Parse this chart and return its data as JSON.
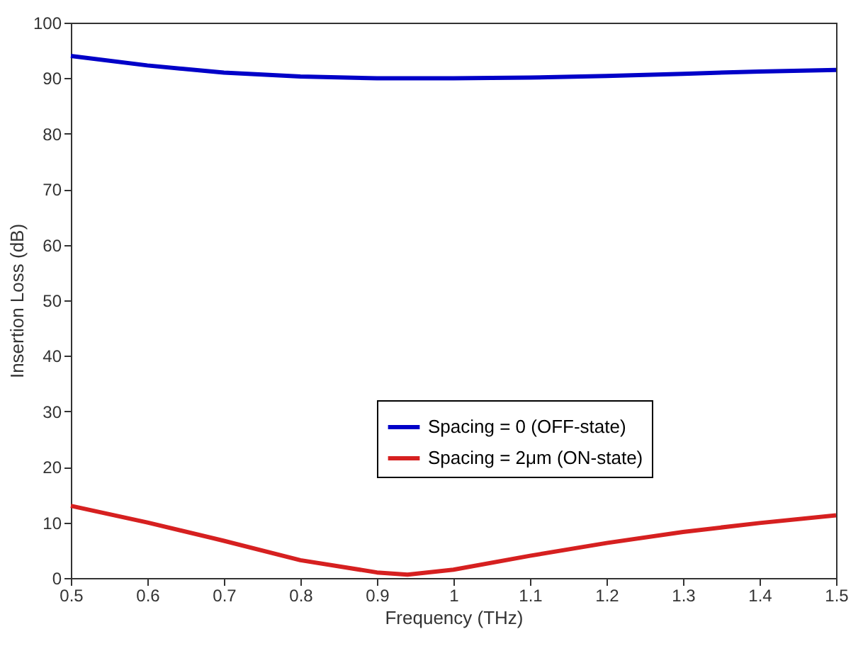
{
  "chart_data": {
    "type": "line",
    "xlabel": "Frequency (THz)",
    "ylabel": "Insertion Loss (dB)",
    "xlim": [
      0.5,
      1.5
    ],
    "ylim": [
      0,
      100
    ],
    "xticks": [
      0.5,
      0.6,
      0.7,
      0.8,
      0.9,
      1,
      1.1,
      1.2,
      1.3,
      1.4,
      1.5
    ],
    "yticks": [
      0,
      10,
      20,
      30,
      40,
      50,
      60,
      70,
      80,
      90,
      100
    ],
    "x": [
      0.5,
      0.6,
      0.7,
      0.8,
      0.9,
      0.94,
      1.0,
      1.1,
      1.2,
      1.3,
      1.4,
      1.5
    ],
    "series": [
      {
        "name": "Spacing = 0 (OFF-state)",
        "color": "#0000c8",
        "values": [
          94,
          92.3,
          91,
          90.3,
          90,
          90,
          90,
          90.1,
          90.4,
          90.8,
          91.2,
          91.5
        ]
      },
      {
        "name": "Spacing = 2μm (ON-state)",
        "color": "#d62020",
        "values": [
          13,
          10,
          6.7,
          3.2,
          1,
          0.6,
          1.5,
          4,
          6.3,
          8.3,
          9.9,
          11.3
        ]
      }
    ],
    "legend": "bottom right",
    "grid": false,
    "line_style": "solid",
    "marker": "none"
  }
}
